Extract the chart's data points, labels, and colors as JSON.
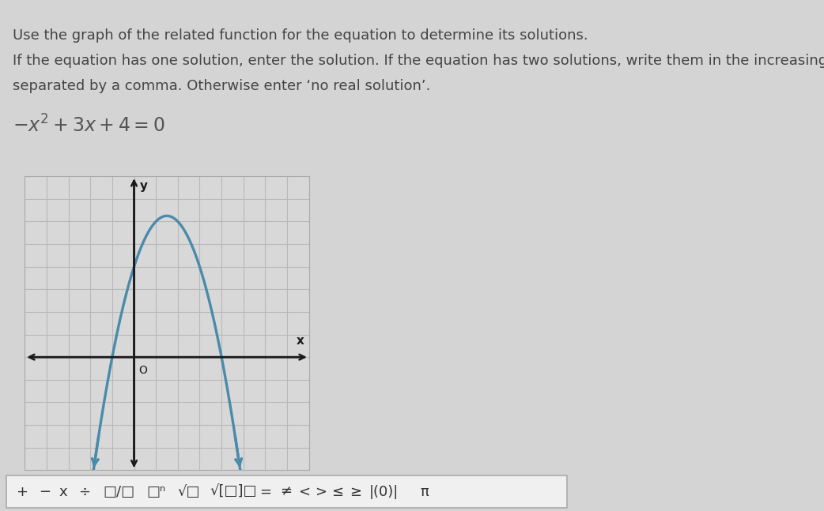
{
  "page_bg": "#d4d4d4",
  "text_bg": "#d4d4d4",
  "text_color": "#444444",
  "text_lines": [
    "Use the graph of the related function for the equation to determine its solutions.",
    "If the equation has one solution, enter the solution. If the equation has two solutions, write them in the increasing",
    "separated by a comma. Otherwise enter ‘no real solution’."
  ],
  "text_fontsize": 13,
  "eq_text": "$-x^2 + 3x + 4 = 0$",
  "eq_fontsize": 17,
  "eq_color": "#555555",
  "graph": {
    "bg_color": "#d8d8d8",
    "grid_color": "#b8b8b8",
    "grid_lw": 0.8,
    "axis_color": "#1a1a1a",
    "axis_lw": 1.8,
    "curve_color": "#4a8aaa",
    "curve_lw": 2.4,
    "xlim": [
      -5,
      8
    ],
    "ylim": [
      -5,
      8
    ],
    "x_label": "x",
    "y_label": "y",
    "origin_label": "O"
  },
  "toolbar_bg": "#f0f0f0",
  "toolbar_border": "#aaaaaa",
  "toolbar_text": "+ − x ÷ □/□  □ⁿ √□  √[□]□ = ≠ < > ≤ ≥  (0)  π"
}
